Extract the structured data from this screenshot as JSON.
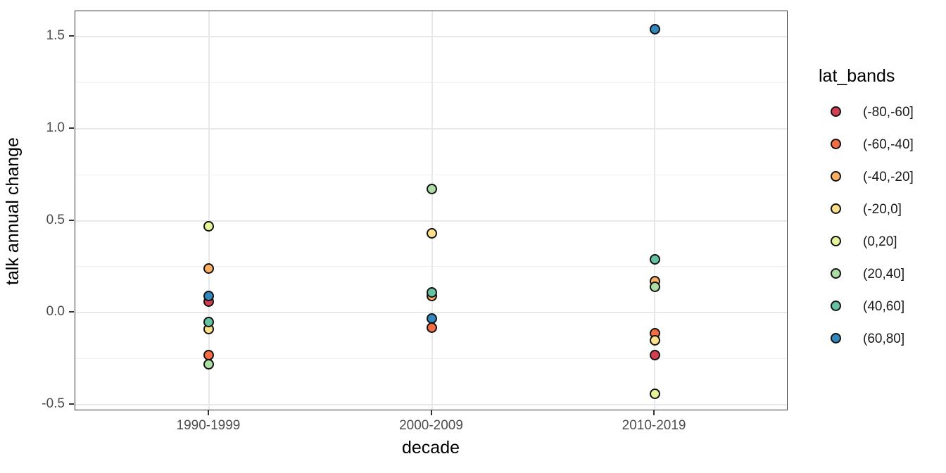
{
  "chart_data": {
    "type": "scatter",
    "title": "",
    "xlabel": "decade",
    "ylabel": "talk annual change",
    "categories": [
      "1990-1999",
      "2000-2009",
      "2010-2019"
    ],
    "y_ticks": [
      "-0.5",
      "0.0",
      "0.5",
      "1.0",
      "1.5"
    ],
    "y_tick_values": [
      -0.5,
      0.0,
      0.5,
      1.0,
      1.5
    ],
    "y_minor_values": [
      -0.25,
      0.25,
      0.75,
      1.25
    ],
    "ylim": [
      -0.54,
      1.64
    ],
    "grid": "on",
    "legend_title": "lat_bands",
    "legend_position": "right",
    "point_outline_color": "#121212",
    "series": [
      {
        "name": "(-80,-60]",
        "color": "#D53E4F",
        "values": [
          0.06,
          null,
          -0.23
        ]
      },
      {
        "name": "(-60,-40]",
        "color": "#F46D43",
        "values": [
          -0.23,
          -0.08,
          -0.11
        ]
      },
      {
        "name": "(-40,-20]",
        "color": "#FDAE61",
        "values": [
          0.24,
          0.09,
          0.17
        ]
      },
      {
        "name": "(-20,0]",
        "color": "#FEE08B",
        "values": [
          -0.09,
          0.43,
          -0.15
        ]
      },
      {
        "name": "(0,20]",
        "color": "#E6F598",
        "values": [
          0.47,
          null,
          -0.44
        ]
      },
      {
        "name": "(20,40]",
        "color": "#ABDDA4",
        "values": [
          -0.28,
          0.67,
          0.14
        ]
      },
      {
        "name": "(40,60]",
        "color": "#66C2A5",
        "values": [
          -0.05,
          0.11,
          0.29
        ]
      },
      {
        "name": "(60,80]",
        "color": "#3288BD",
        "values": [
          0.09,
          -0.03,
          1.54
        ]
      }
    ]
  }
}
